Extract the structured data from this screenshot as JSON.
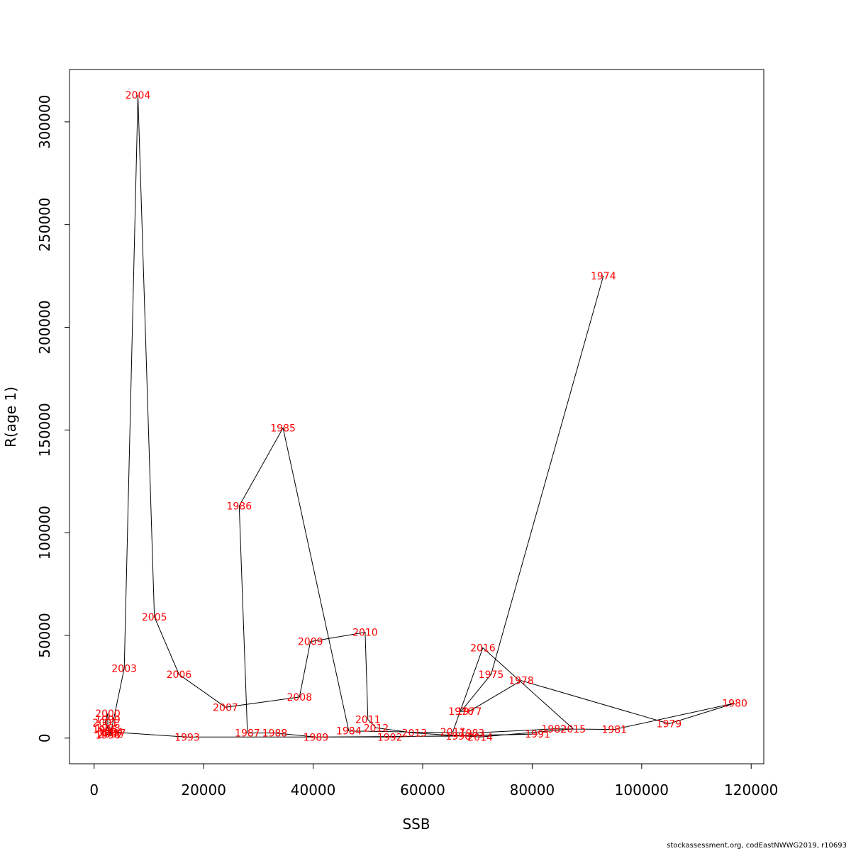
{
  "chart_data": {
    "type": "line",
    "title": "",
    "xlabel": "SSB",
    "ylabel": "R(age 1)",
    "xlim": [
      -4500,
      122300
    ],
    "ylim": [
      -12500,
      325500
    ],
    "xticks": [
      0,
      20000,
      40000,
      60000,
      80000,
      100000,
      120000
    ],
    "yticks": [
      0,
      50000,
      100000,
      150000,
      200000,
      250000,
      300000
    ],
    "grid": false,
    "line_color": "#000000",
    "label_color": "#ff0000",
    "points": [
      {
        "year": "1974",
        "x": 93000,
        "y": 225000
      },
      {
        "year": "1975",
        "x": 72500,
        "y": 31000
      },
      {
        "year": "1976",
        "x": 67000,
        "y": 13000
      },
      {
        "year": "1977",
        "x": 68500,
        "y": 13000
      },
      {
        "year": "1978",
        "x": 78000,
        "y": 28000
      },
      {
        "year": "1979",
        "x": 105000,
        "y": 7000
      },
      {
        "year": "1980",
        "x": 117000,
        "y": 17000
      },
      {
        "year": "1981",
        "x": 95000,
        "y": 4200
      },
      {
        "year": "1982",
        "x": 84000,
        "y": 4500
      },
      {
        "year": "1983",
        "x": 69000,
        "y": 2500
      },
      {
        "year": "1984",
        "x": 46500,
        "y": 3500
      },
      {
        "year": "1985",
        "x": 34500,
        "y": 151000
      },
      {
        "year": "1986",
        "x": 26500,
        "y": 113000
      },
      {
        "year": "1987",
        "x": 28000,
        "y": 2500
      },
      {
        "year": "1988",
        "x": 33000,
        "y": 2500
      },
      {
        "year": "1989",
        "x": 40500,
        "y": 500
      },
      {
        "year": "1990",
        "x": 66500,
        "y": 1000
      },
      {
        "year": "1991",
        "x": 81000,
        "y": 2000
      },
      {
        "year": "1992",
        "x": 54000,
        "y": 500
      },
      {
        "year": "1993",
        "x": 17000,
        "y": 500
      },
      {
        "year": "1994",
        "x": 3000,
        "y": 3000
      },
      {
        "year": "1995",
        "x": 2000,
        "y": 4000
      },
      {
        "year": "1996",
        "x": 2500,
        "y": 1500
      },
      {
        "year": "1997",
        "x": 3500,
        "y": 2500
      },
      {
        "year": "1998",
        "x": 2500,
        "y": 5000
      },
      {
        "year": "1999",
        "x": 2500,
        "y": 9000
      },
      {
        "year": "2000",
        "x": 2500,
        "y": 12000
      },
      {
        "year": "2001",
        "x": 2000,
        "y": 7500
      },
      {
        "year": "2002",
        "x": 3000,
        "y": 2000
      },
      {
        "year": "2003",
        "x": 5500,
        "y": 34000
      },
      {
        "year": "2004",
        "x": 8000,
        "y": 313000
      },
      {
        "year": "2005",
        "x": 11000,
        "y": 59000
      },
      {
        "year": "2006",
        "x": 15500,
        "y": 31000
      },
      {
        "year": "2007",
        "x": 24000,
        "y": 15000
      },
      {
        "year": "2008",
        "x": 37500,
        "y": 20000
      },
      {
        "year": "2009",
        "x": 39500,
        "y": 47000
      },
      {
        "year": "2010",
        "x": 49500,
        "y": 51500
      },
      {
        "year": "2011",
        "x": 50000,
        "y": 9000
      },
      {
        "year": "2012",
        "x": 51500,
        "y": 5000
      },
      {
        "year": "2013",
        "x": 58500,
        "y": 2500
      },
      {
        "year": "2014",
        "x": 70500,
        "y": 500
      },
      {
        "year": "2015",
        "x": 87500,
        "y": 4500
      },
      {
        "year": "2016",
        "x": 71000,
        "y": 44000
      },
      {
        "year": "2017",
        "x": 65500,
        "y": 3000
      }
    ]
  },
  "footer_text": "stockassessment.org, codEastNWWG2019, r10693"
}
